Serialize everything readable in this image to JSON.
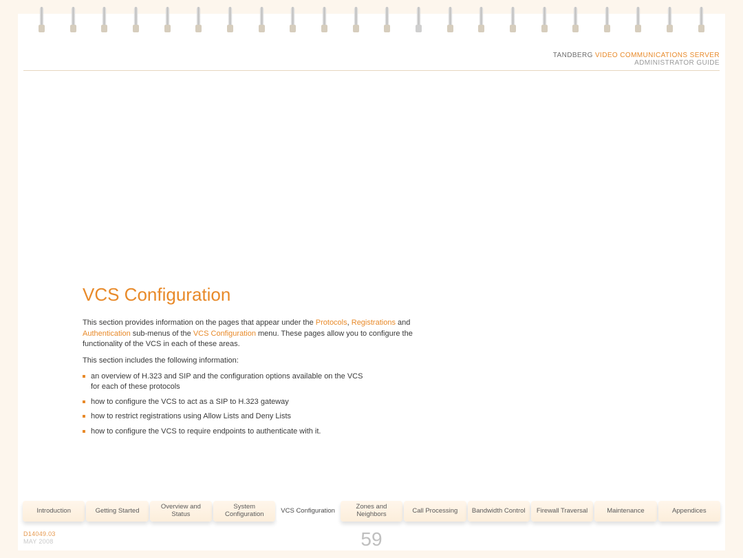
{
  "header": {
    "brand": "TANDBERG",
    "product": "VIDEO COMMUNICATIONS SERVER",
    "subtitle": "ADMINISTRATOR GUIDE"
  },
  "content": {
    "title": "VCS Configuration",
    "intro_prefix": "This section provides information on the pages that appear under the ",
    "link_protocols": "Protocols",
    "intro_sep1": ", ",
    "link_registrations": "Registrations",
    "intro_sep2": " and ",
    "link_authentication": "Authentication",
    "intro_mid": " sub-menus of the ",
    "link_vcs": "VCS Configuration",
    "intro_suffix": " menu.  These pages allow you to configure the functionality of the VCS in each of these areas.",
    "includes_label": "This section includes the following information:",
    "bullets": [
      "an overview of H.323 and SIP and the configuration options available on the VCS for each of these protocols",
      "how to configure the VCS to act as a SIP to H.323 gateway",
      "how to restrict registrations using Allow Lists and Deny Lists",
      "how to configure the VCS to require endpoints to authenticate with it."
    ]
  },
  "tabs": [
    {
      "label": "Introduction",
      "active": false
    },
    {
      "label": "Getting Started",
      "active": false
    },
    {
      "label": "Overview and Status",
      "active": false
    },
    {
      "label": "System Configuration",
      "active": false
    },
    {
      "label": "VCS Configuration",
      "active": true
    },
    {
      "label": "Zones and Neighbors",
      "active": false
    },
    {
      "label": "Call Processing",
      "active": false
    },
    {
      "label": "Bandwidth Control",
      "active": false
    },
    {
      "label": "Firewall Traversal",
      "active": false
    },
    {
      "label": "Maintenance",
      "active": false
    },
    {
      "label": "Appendices",
      "active": false
    }
  ],
  "footer": {
    "doc_id": "D14049.03",
    "date": "MAY 2008",
    "page_number": "59"
  },
  "colors": {
    "accent": "#e88a2a",
    "page_bg": "#ffffff",
    "body_bg": "#fdf6ed",
    "tab_grad_top": "#fff6eb",
    "tab_grad_bottom": "#fceedb",
    "text": "#3a3a3a",
    "muted": "#bfbfbf"
  }
}
